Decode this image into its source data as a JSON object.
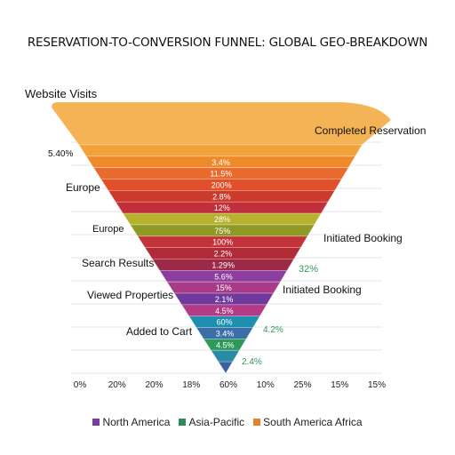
{
  "chart_data": {
    "type": "funnel",
    "title": "RESERVATION-TO-CONVERSION FUNNEL: GLOBAL GEO-BREAKDOWN",
    "x_ticks": [
      "0%",
      "20%",
      "20%",
      "18%",
      "60%",
      "10%",
      "25%",
      "15%",
      "15%"
    ],
    "grid": true,
    "legend_position": "bottom",
    "legend": [
      {
        "name": "North America",
        "color": "#7a3ca0"
      },
      {
        "name": "Asia-Pacific",
        "color": "#2e8b57"
      },
      {
        "name": "South America Africa",
        "color": "#e8822a"
      }
    ],
    "stages": [
      {
        "value": "",
        "color": "#f4b354"
      },
      {
        "value": "",
        "color": "#f3a23a"
      },
      {
        "value": "3.4%",
        "color": "#ee8a2c"
      },
      {
        "value": "11.5%",
        "color": "#ea6a2c"
      },
      {
        "value": "200%",
        "color": "#e2502b"
      },
      {
        "value": "2.8%",
        "color": "#cc3a2b"
      },
      {
        "value": "12%",
        "color": "#c02f3a"
      },
      {
        "value": "28%",
        "color": "#b7b22e"
      },
      {
        "value": "75%",
        "color": "#8f9a24"
      },
      {
        "value": "100%",
        "color": "#c23439"
      },
      {
        "value": "2.2%",
        "color": "#b22a36"
      },
      {
        "value": "1.29%",
        "color": "#9c2a46"
      },
      {
        "value": "5.6%",
        "color": "#8d3ca0"
      },
      {
        "value": "15%",
        "color": "#a83a88"
      },
      {
        "value": "2.1%",
        "color": "#6f3a9c"
      },
      {
        "value": "4.5%",
        "color": "#b23a86"
      },
      {
        "value": "60%",
        "color": "#1f8fb0"
      },
      {
        "value": "3.4%",
        "color": "#3a6fa8"
      },
      {
        "value": "4.5%",
        "color": "#2e9a5a"
      },
      {
        "value": "",
        "color": "#2a8ca4"
      },
      {
        "value": "",
        "color": "#3a62a0"
      }
    ],
    "annotations": [
      {
        "text": "Website Visits",
        "anchor": "start",
        "color": "#111"
      },
      {
        "text": "Completed Reservation",
        "anchor": "start",
        "color": "#111"
      },
      {
        "text": "5.40%",
        "anchor": "start",
        "color": "#111"
      },
      {
        "text": "Europe",
        "anchor": "start",
        "color": "#111"
      },
      {
        "text": "Europe",
        "anchor": "start",
        "color": "#111"
      },
      {
        "text": "Initiated Booking",
        "anchor": "start",
        "color": "#111"
      },
      {
        "text": "Search Results",
        "anchor": "start",
        "color": "#111"
      },
      {
        "text": "32%",
        "anchor": "start",
        "color": "#2e9a5a"
      },
      {
        "text": "Initiated Booking",
        "anchor": "start",
        "color": "#111"
      },
      {
        "text": "Viewed Properties",
        "anchor": "start",
        "color": "#111"
      },
      {
        "text": "Added to Cart",
        "anchor": "start",
        "color": "#111"
      },
      {
        "text": "4.2%",
        "anchor": "start",
        "color": "#2e9a5a"
      },
      {
        "text": "2.4%",
        "anchor": "start",
        "color": "#2e9a5a"
      }
    ]
  }
}
